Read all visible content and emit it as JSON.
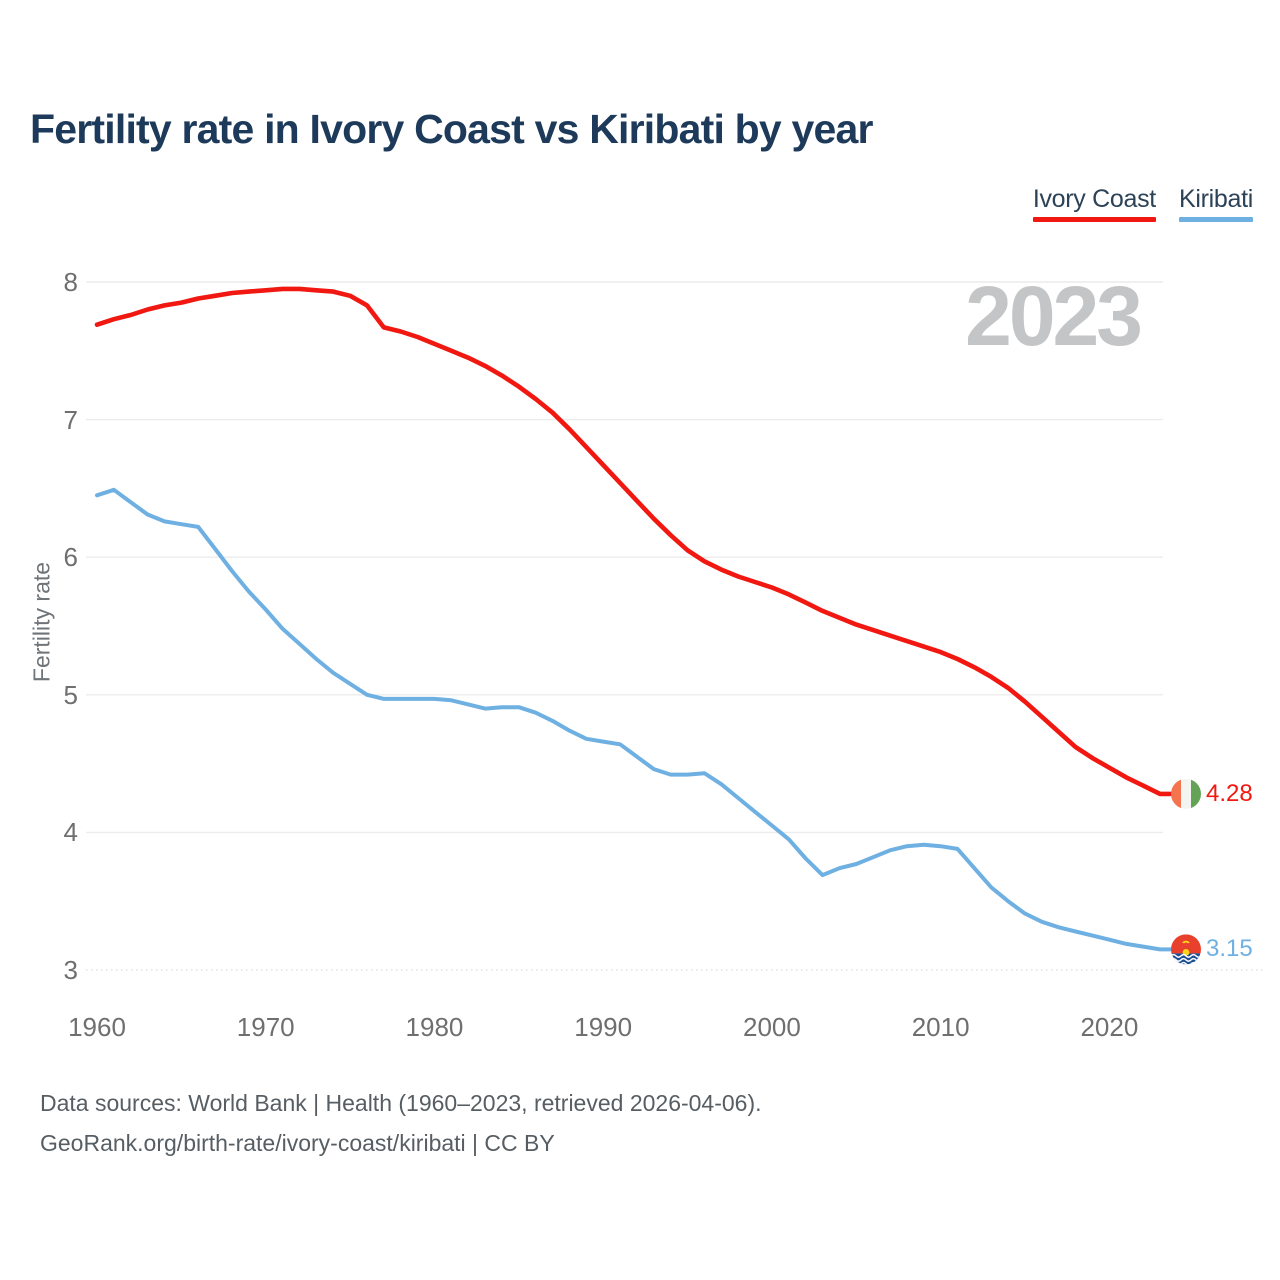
{
  "page": {
    "title": "Fertility rate in Ivory Coast vs Kiribati by year",
    "watermark_year": "2023",
    "footer_line1": "Data sources: World Bank | Health (1960–2023, retrieved 2026-04-06).",
    "footer_line2": "GeoRank.org/birth-rate/ivory-coast/kiribati | CC BY"
  },
  "chart_data": {
    "type": "line",
    "title": "Fertility rate in Ivory Coast vs Kiribati by year",
    "xlabel": "",
    "ylabel": "Fertility rate",
    "ylim": [
      3,
      8
    ],
    "xlim": [
      1960,
      2023
    ],
    "yticks": [
      8,
      7,
      6,
      5,
      4,
      3
    ],
    "xticks": [
      1960,
      1970,
      1980,
      1990,
      2000,
      2010,
      2020
    ],
    "grid": "horizontal",
    "legend_position": "top-right",
    "colors": {
      "ivory_coast": "#f01810",
      "kiribati": "#6fb0e2",
      "grid": "#ececec",
      "axis_text": "#6f6f6f",
      "watermark": "#c3c5c7",
      "title_text": "#1d3a5a"
    },
    "x": [
      1960,
      1961,
      1962,
      1963,
      1964,
      1965,
      1966,
      1967,
      1968,
      1969,
      1970,
      1971,
      1972,
      1973,
      1974,
      1975,
      1976,
      1977,
      1978,
      1979,
      1980,
      1981,
      1982,
      1983,
      1984,
      1985,
      1986,
      1987,
      1988,
      1989,
      1990,
      1991,
      1992,
      1993,
      1994,
      1995,
      1996,
      1997,
      1998,
      1999,
      2000,
      2001,
      2002,
      2003,
      2004,
      2005,
      2006,
      2007,
      2008,
      2009,
      2010,
      2011,
      2012,
      2013,
      2014,
      2015,
      2016,
      2017,
      2018,
      2019,
      2020,
      2021,
      2022,
      2023
    ],
    "series": [
      {
        "name": "Ivory Coast",
        "color": "#f01810",
        "end_label": "4.28",
        "end_flag": "ivory-coast-flag",
        "values": [
          7.69,
          7.73,
          7.76,
          7.8,
          7.83,
          7.85,
          7.88,
          7.9,
          7.92,
          7.93,
          7.94,
          7.95,
          7.95,
          7.94,
          7.93,
          7.9,
          7.83,
          7.67,
          7.64,
          7.6,
          7.55,
          7.5,
          7.45,
          7.39,
          7.32,
          7.24,
          7.15,
          7.05,
          6.93,
          6.8,
          6.67,
          6.54,
          6.41,
          6.28,
          6.16,
          6.05,
          5.97,
          5.91,
          5.86,
          5.82,
          5.78,
          5.73,
          5.67,
          5.61,
          5.56,
          5.51,
          5.47,
          5.43,
          5.39,
          5.35,
          5.31,
          5.26,
          5.2,
          5.13,
          5.05,
          4.95,
          4.84,
          4.73,
          4.62,
          4.54,
          4.47,
          4.4,
          4.34,
          4.28
        ]
      },
      {
        "name": "Kiribati",
        "color": "#6fb0e2",
        "end_label": "3.15",
        "end_flag": "kiribati-flag",
        "values": [
          6.45,
          6.49,
          6.4,
          6.31,
          6.26,
          6.24,
          6.22,
          6.06,
          5.9,
          5.75,
          5.62,
          5.48,
          5.37,
          5.26,
          5.16,
          5.08,
          5.0,
          4.97,
          4.97,
          4.97,
          4.97,
          4.96,
          4.93,
          4.9,
          4.91,
          4.91,
          4.87,
          4.81,
          4.74,
          4.68,
          4.66,
          4.64,
          4.55,
          4.46,
          4.42,
          4.42,
          4.43,
          4.35,
          4.25,
          4.15,
          4.05,
          3.95,
          3.81,
          3.69,
          3.74,
          3.77,
          3.82,
          3.87,
          3.9,
          3.91,
          3.9,
          3.88,
          3.74,
          3.6,
          3.5,
          3.41,
          3.35,
          3.31,
          3.28,
          3.25,
          3.22,
          3.19,
          3.17,
          3.15
        ]
      }
    ]
  }
}
